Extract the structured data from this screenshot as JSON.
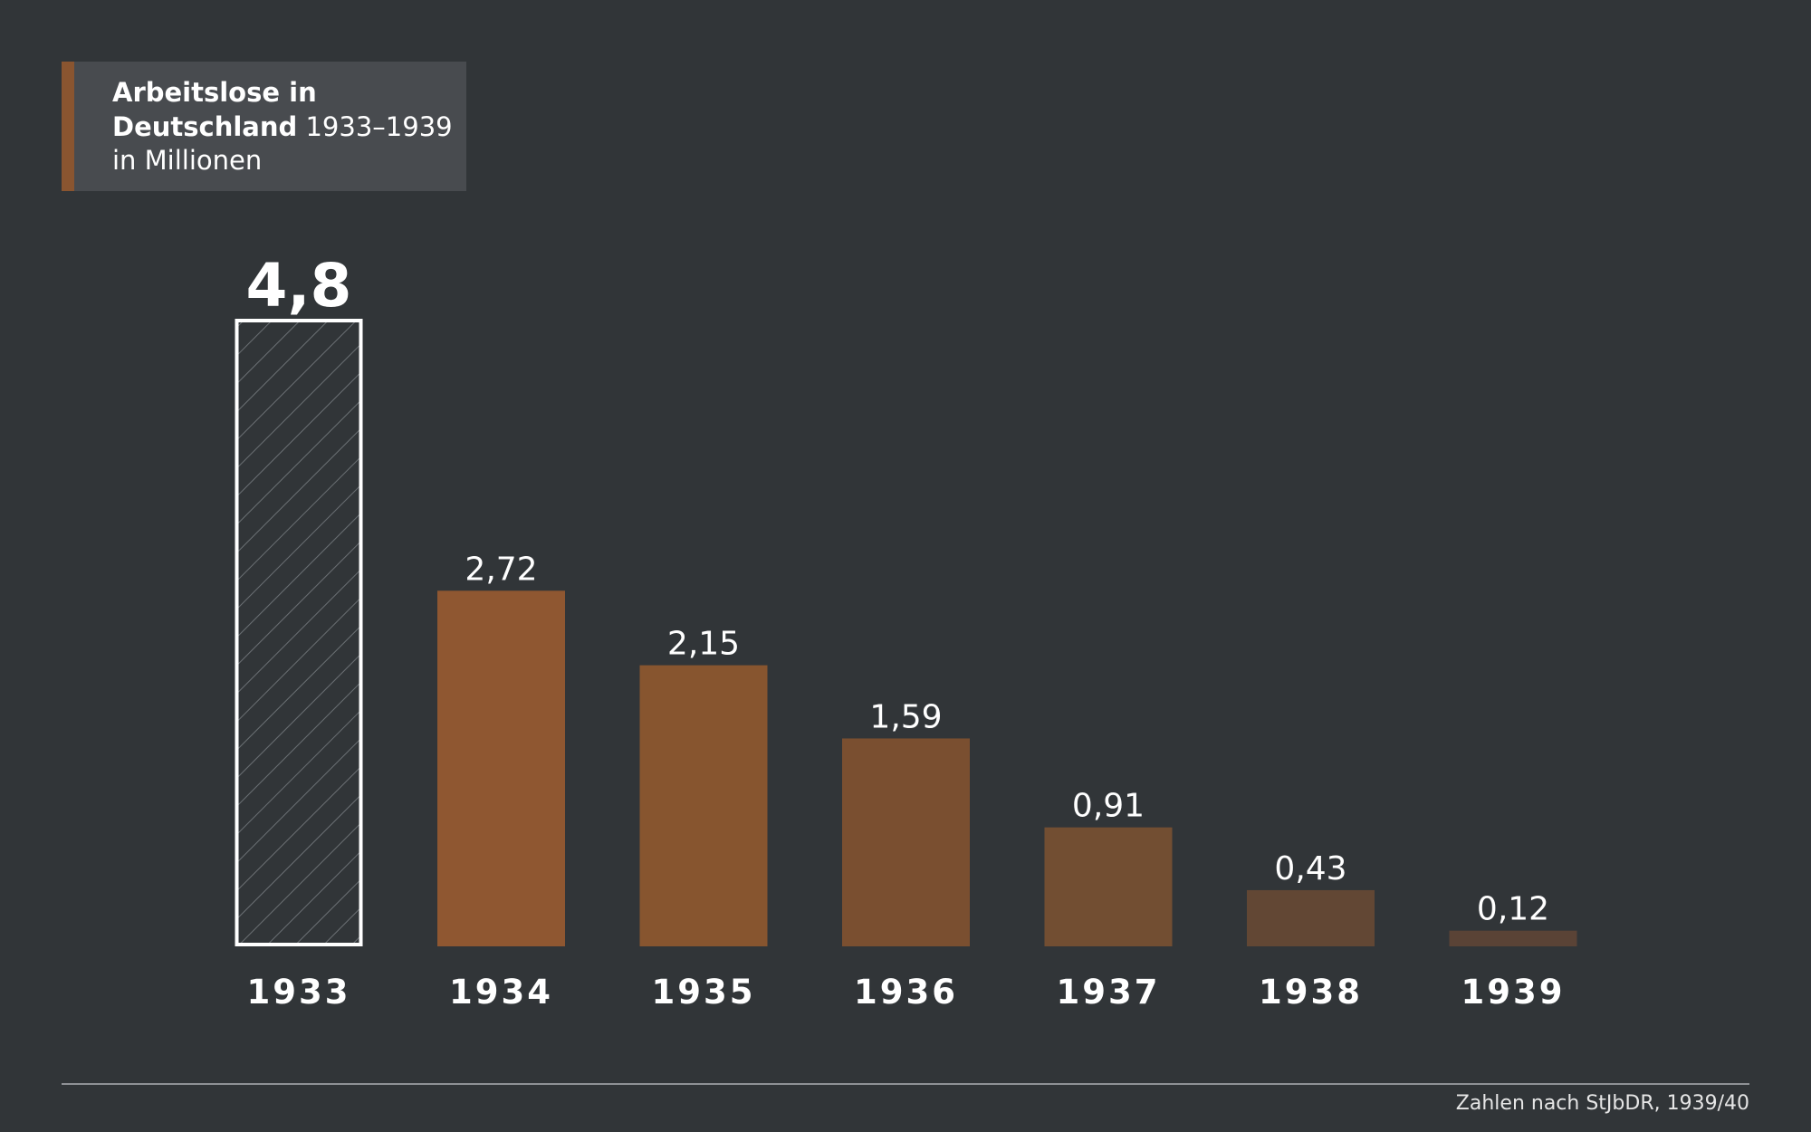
{
  "header": {
    "title_bold_1": "Arbeitslose in",
    "title_bold_2": "Deutschland",
    "title_range": "1933–1939",
    "title_unit": "in Millionen"
  },
  "chart_data": {
    "type": "bar",
    "title": "Arbeitslose in Deutschland 1933–1939",
    "subtitle": "in Millionen",
    "categories": [
      "1933",
      "1934",
      "1935",
      "1936",
      "1937",
      "1938",
      "1939"
    ],
    "values": [
      4.8,
      2.72,
      2.15,
      1.59,
      0.91,
      0.43,
      0.12
    ],
    "value_labels": [
      "4,8",
      "2,72",
      "2,15",
      "1,59",
      "0,91",
      "0,43",
      "0,12"
    ],
    "ylim": [
      0,
      4.8
    ],
    "grid": false,
    "colors": {
      "highlight_outline": "#ffffff",
      "hatch": "#6b7074",
      "bars": [
        "#8f5731",
        "#8f5731",
        "#87552f",
        "#7a4f30",
        "#724e32",
        "#624734",
        "#5a4336"
      ]
    },
    "highlight_index": 0
  },
  "footer": {
    "source": "Zahlen nach StJbDR, 1939/40"
  }
}
